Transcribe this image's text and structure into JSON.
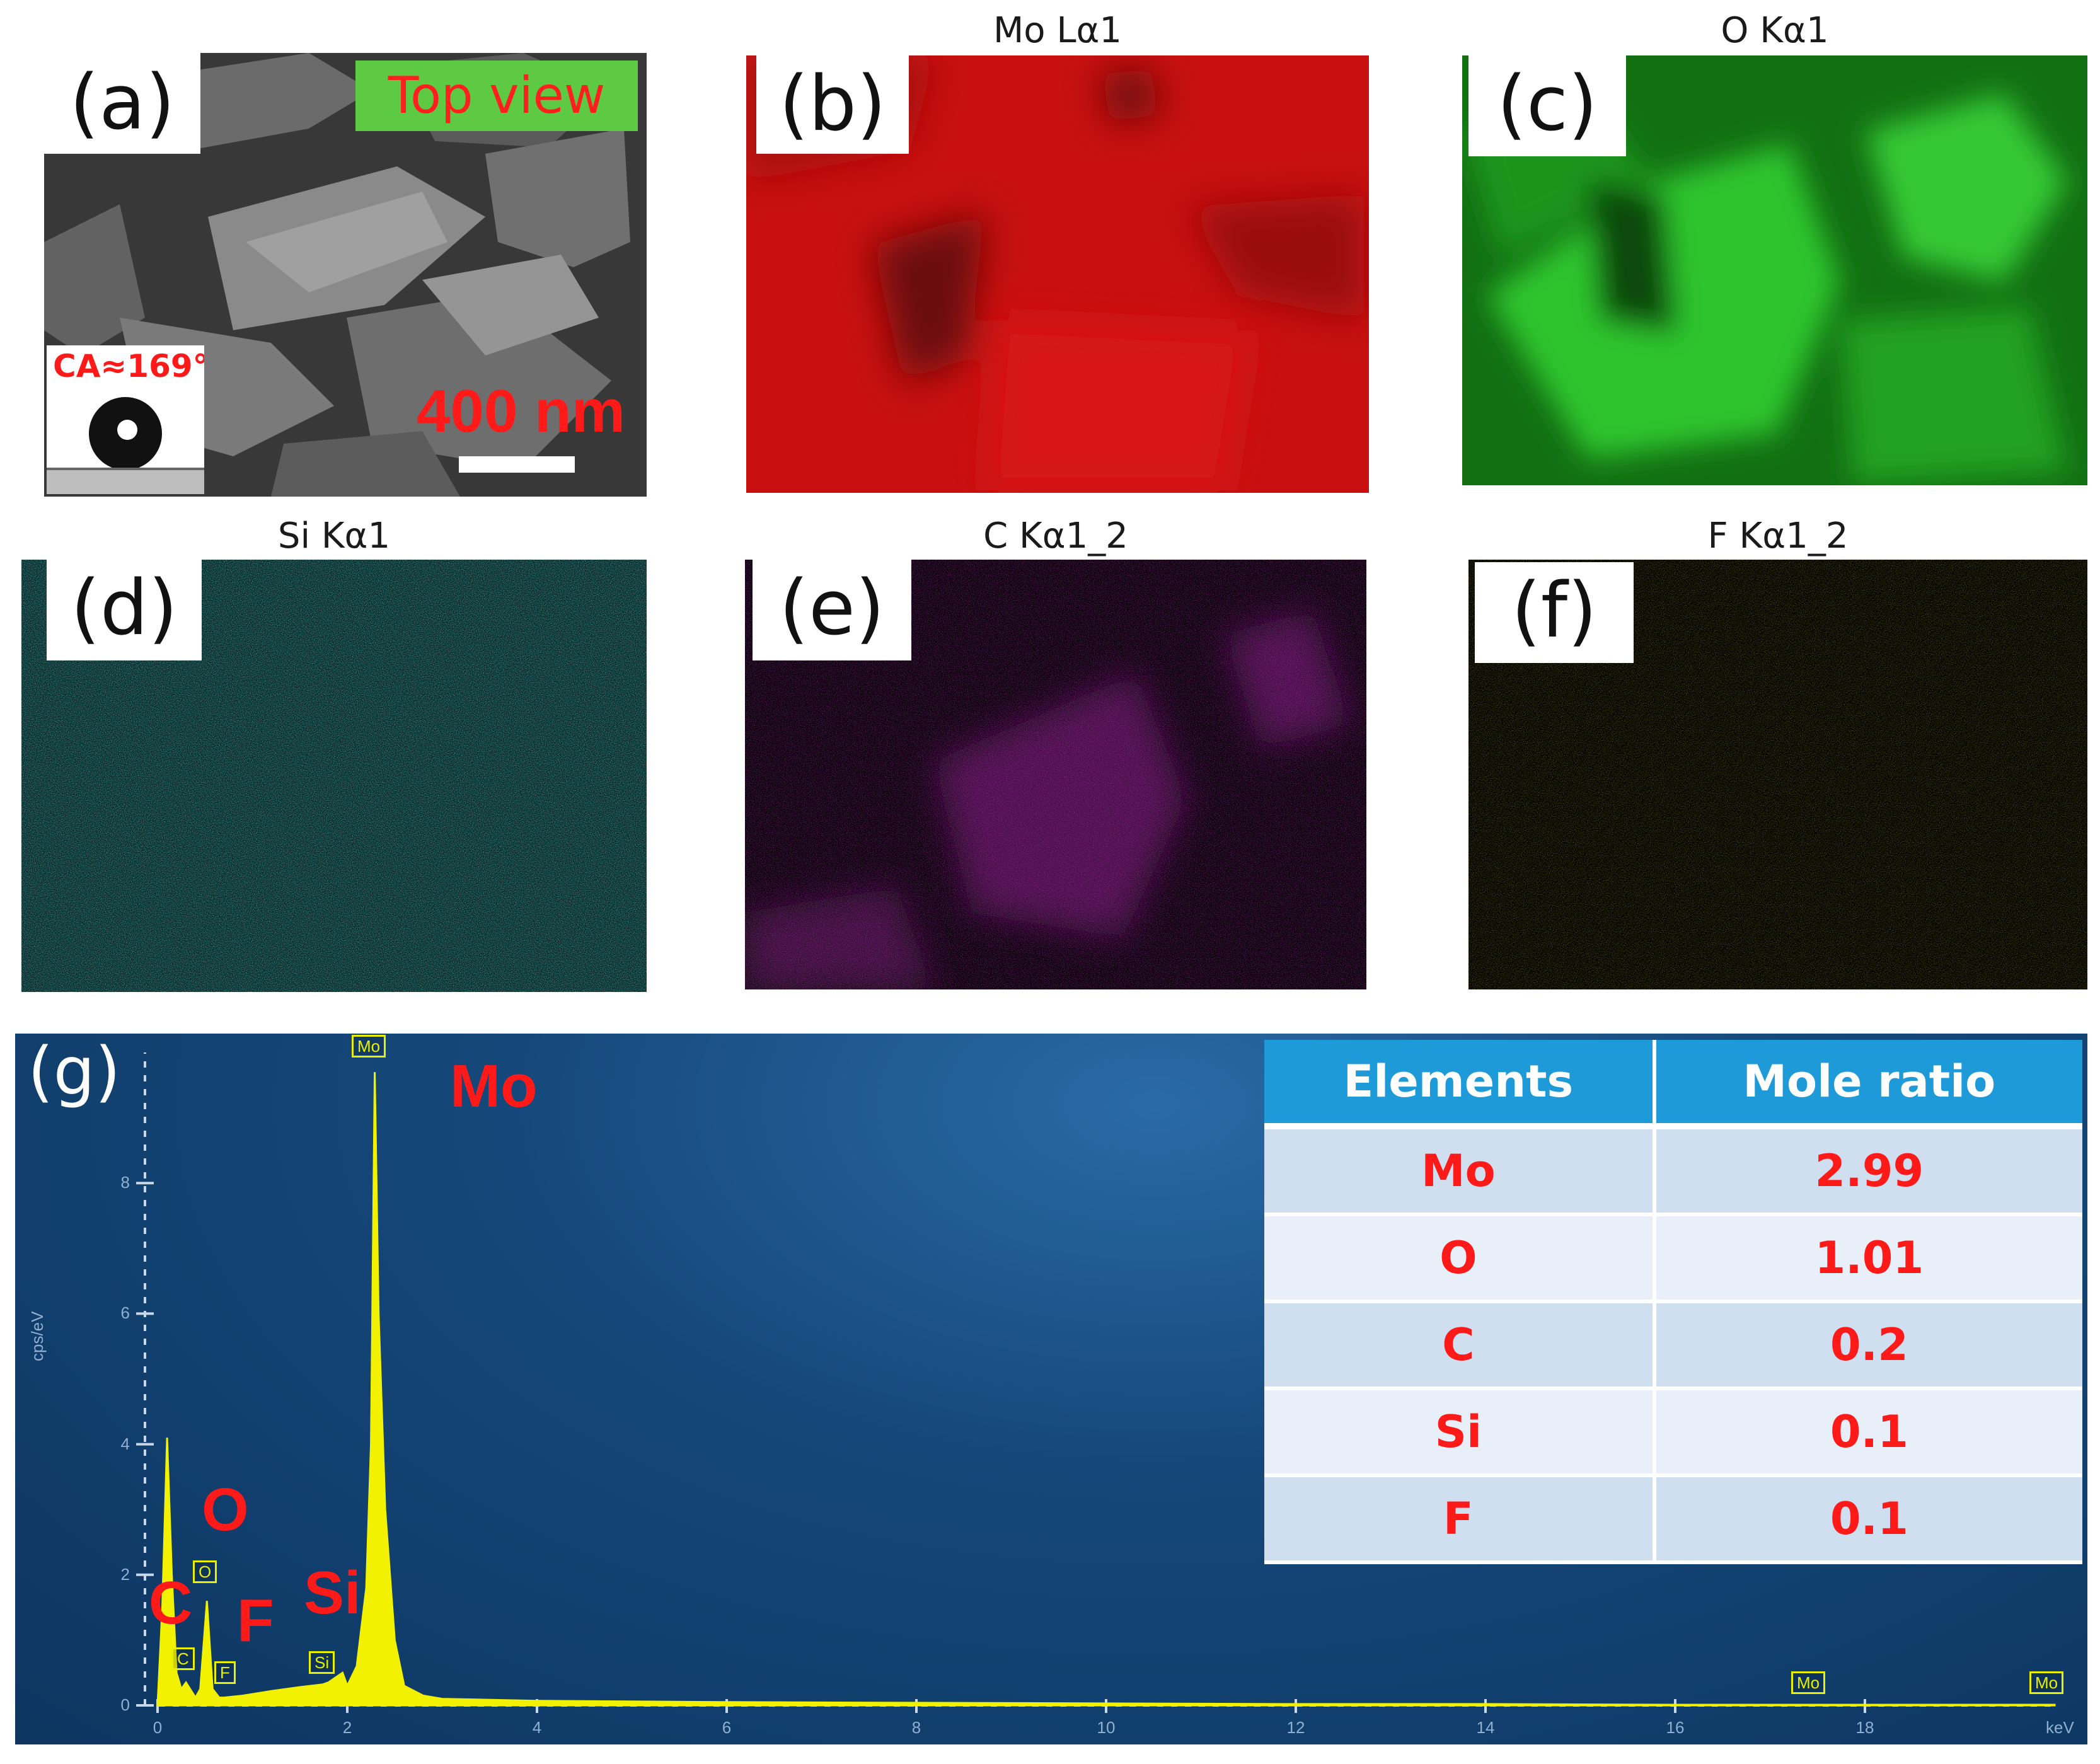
{
  "panels": {
    "a": {
      "tag": "(a)",
      "badge": "Top view",
      "contact_angle": "CA≈169°",
      "scale": "400 nm"
    },
    "b": {
      "tag": "(b)",
      "title": "Mo Lα1",
      "color": "#e01010"
    },
    "c": {
      "tag": "(c)",
      "title": "O Kα1",
      "color": "#2ecc2e"
    },
    "d": {
      "tag": "(d)",
      "title": "Si Kα1",
      "color": "#1aa0a0"
    },
    "e": {
      "tag": "(e)",
      "title": "C Kα1_2",
      "color": "#b01fb0"
    },
    "f": {
      "tag": "(f)",
      "title": "F Kα1_2",
      "color": "#a8a010"
    },
    "g": {
      "tag": "(g)",
      "element_labels": {
        "mo": "Mo",
        "o": "O",
        "c": "C",
        "f": "F",
        "si": "Si"
      },
      "peak_tags": {
        "mo_main": "Mo",
        "o": "O",
        "c": "C",
        "f": "F",
        "si": "Si",
        "mo_17": "Mo",
        "mo_19": "Mo"
      },
      "ylabel": "cps/eV",
      "xunit": "keV",
      "x_ticks": [
        "0",
        "2",
        "4",
        "6",
        "8",
        "10",
        "12",
        "14",
        "16",
        "18"
      ],
      "y_ticks": [
        "0",
        "2",
        "4",
        "6",
        "8"
      ],
      "table": {
        "headers": [
          "Elements",
          "Mole ratio"
        ],
        "rows": [
          {
            "element": "Mo",
            "ratio": "2.99"
          },
          {
            "element": "O",
            "ratio": "1.01"
          },
          {
            "element": "C",
            "ratio": "0.2"
          },
          {
            "element": "Si",
            "ratio": "0.1"
          },
          {
            "element": "F",
            "ratio": "0.1"
          }
        ]
      }
    }
  },
  "chart_data": {
    "type": "line",
    "xlabel": "keV",
    "ylabel": "cps/eV",
    "xlim": [
      0,
      20
    ],
    "ylim": [
      0,
      10
    ],
    "series": [
      {
        "x": [
          0,
          0.05,
          0.1,
          0.15,
          0.2,
          0.25,
          0.3,
          0.4,
          0.45,
          0.52,
          0.58,
          0.65,
          0.7,
          0.9,
          1.2,
          1.5,
          1.74,
          1.8,
          1.95,
          2.0,
          2.1,
          2.2,
          2.25,
          2.29,
          2.33,
          2.4,
          2.5,
          2.6,
          2.8,
          3.0,
          4,
          6,
          8,
          10,
          12,
          14,
          16,
          18,
          20
        ],
        "y": [
          0,
          1.5,
          4.1,
          2.0,
          0.5,
          0.25,
          0.35,
          0.12,
          0.25,
          1.6,
          0.25,
          0.12,
          0.12,
          0.15,
          0.22,
          0.28,
          0.32,
          0.35,
          0.5,
          0.3,
          0.6,
          1.8,
          4.0,
          9.7,
          6.0,
          3.0,
          1.0,
          0.3,
          0.15,
          0.1,
          0.07,
          0.05,
          0.04,
          0.03,
          0.02,
          0.02,
          0.01,
          0.01,
          0.01
        ]
      }
    ]
  }
}
